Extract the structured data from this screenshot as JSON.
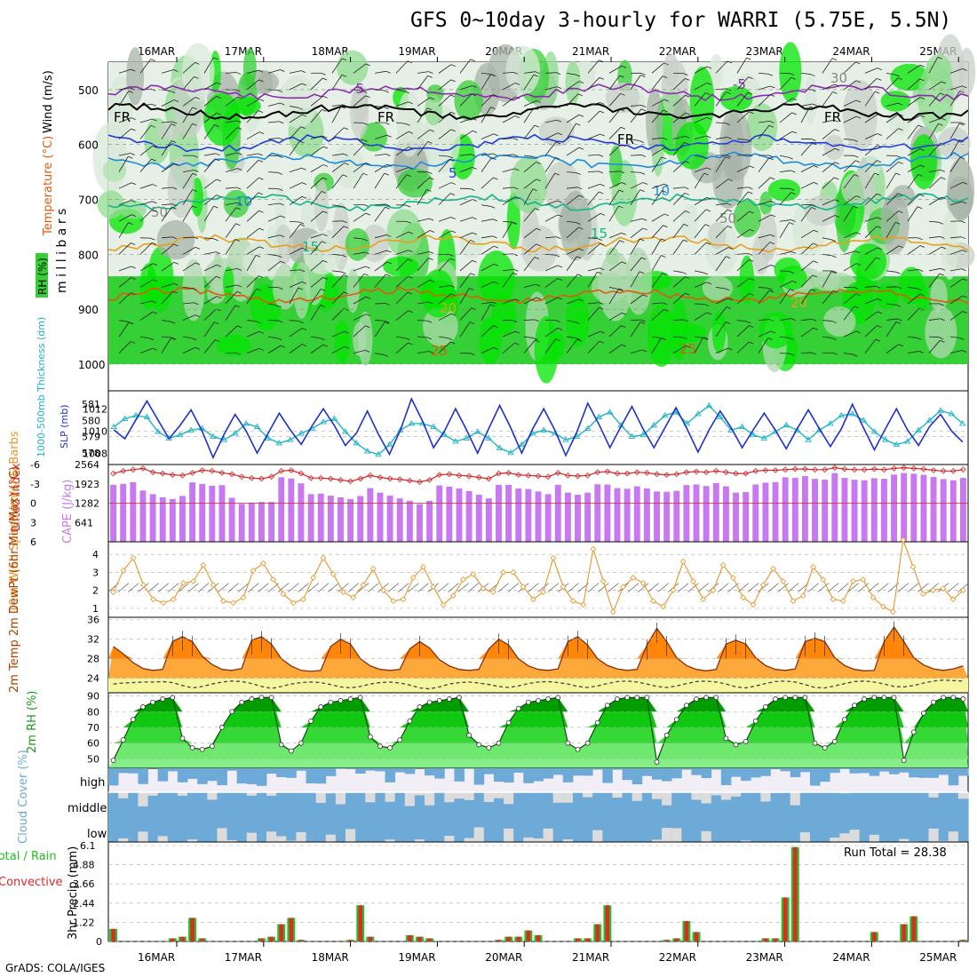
{
  "title": "GFS 0~10day 3-hourly for WARRI (5.75E, 5.5N)",
  "credit": "GrADS: COLA/IGES",
  "dates": [
    "16MAR",
    "17MAR",
    "18MAR",
    "19MAR",
    "20MAR",
    "21MAR",
    "22MAR",
    "23MAR",
    "24MAR",
    "25MAR"
  ],
  "colors": {
    "rh_green": "#35d035",
    "rh_bright": "#00e600",
    "rh_gray": "#c8d0c8",
    "temp_purple": "#8a2bb0",
    "temp_blue": "#1e3cdc",
    "temp_lightblue": "#1e8cdc",
    "temp_teal": "#12b48c",
    "temp_orange": "#e6a01e",
    "temp_darkorange": "#e05a0a",
    "thickness": "#22b4c4",
    "slp": "#1e32c8",
    "lifted": "#d22828",
    "cape": "#c878f0",
    "wind": "#e69628",
    "cloud": "#6eaad8",
    "precip_total": "#22c022",
    "precip_conv": "#e02828"
  },
  "chart_data": [
    {
      "type": "heatmap",
      "name": "upper-air",
      "ylabel": "m i l l i b a r s",
      "legend": [
        "RH (%)",
        "Temperature (°C)",
        "Wind (m/s)"
      ],
      "yticks": [
        500,
        600,
        700,
        800,
        900,
        1000
      ],
      "ylim": [
        1000,
        450
      ],
      "contour_labels": [
        "-5",
        "-5",
        "FR",
        "FR",
        "FR",
        "FR",
        "5",
        "10",
        "10",
        "15",
        "15",
        "20",
        "20",
        "25",
        "25",
        "30",
        "50",
        "50"
      ]
    },
    {
      "type": "line",
      "name": "thickness-slp",
      "ylabel_left": "1000-500mb Thickness (dm)",
      "ylabel_right": "SLP (mb)",
      "yticks_left": [
        "581",
        "580",
        "579",
        "578"
      ],
      "yticks_right": [
        "1012",
        "1010",
        "1008"
      ],
      "series": [
        {
          "name": "1000-500mb Thickness (dm)",
          "values": [
            579.6,
            580.1,
            580.3,
            580.2,
            579.3,
            578.9,
            579.1,
            579.4,
            579.5,
            579.0,
            578.8,
            579.2,
            579.8,
            579.6,
            578.9,
            578.6,
            578.8,
            579.2,
            579.5,
            579.9,
            580.1,
            579.3,
            578.6,
            578.1,
            577.9,
            578.5,
            579.4,
            579.8,
            579.8,
            579.6,
            579.1,
            578.7,
            578.9,
            579.3,
            578.9,
            578.3,
            578.0,
            578.5,
            579.2,
            579.4,
            579.2,
            578.8,
            579.0,
            579.5,
            580.2,
            580.5,
            579.7,
            579.0,
            579.1,
            579.7,
            580.3,
            580.5,
            579.8,
            580.4,
            580.9,
            580.2,
            579.4,
            579.6,
            579.1,
            578.9,
            579.3,
            579.7,
            579.4,
            578.8,
            579.4,
            579.8,
            580.3,
            580.4,
            580.0,
            579.3,
            578.8,
            578.5,
            578.7,
            579.4,
            580.0,
            580.6,
            580.4,
            579.8
          ]
        },
        {
          "name": "SLP (mb)",
          "values": [
            1010.1,
            1009.3,
            1011.0,
            1012.7,
            1011.0,
            1009.3,
            1010.5,
            1011.9,
            1010.0,
            1007.6,
            1009.7,
            1011.5,
            1010.0,
            1008.0,
            1009.8,
            1011.6,
            1010.1,
            1008.8,
            1010.5,
            1012.0,
            1010.5,
            1008.7,
            1009.8,
            1011.8,
            1009.7,
            1007.9,
            1010.1,
            1012.9,
            1010.9,
            1008.5,
            1010.0,
            1012.0,
            1010.1,
            1008.0,
            1010.2,
            1012.3,
            1010.3,
            1008.0,
            1010.2,
            1012.0,
            1010.1,
            1007.8,
            1009.9,
            1012.5,
            1010.6,
            1008.5,
            1010.4,
            1012.2,
            1010.2,
            1008.5,
            1010.3,
            1012.1,
            1010.2,
            1008.1,
            1010.1,
            1011.8,
            1010.3,
            1008.5,
            1010.1,
            1011.6,
            1010.1,
            1008.4,
            1010.2,
            1011.9,
            1010.2,
            1008.6,
            1010.2,
            1012.4,
            1010.3,
            1008.3,
            1010.2,
            1012.0,
            1010.1,
            1008.7,
            1010.4,
            1011.5,
            1010.0,
            1009.0
          ]
        }
      ]
    },
    {
      "type": "bar",
      "name": "lifted-index-cape",
      "ylabel_left": "Lifted Index",
      "ylabel_right": "CAPE (J/kg)",
      "yticks_left": [
        "-6",
        "-3",
        "0",
        "3",
        "6"
      ],
      "yticks_right": [
        "2564",
        "1923",
        "1282",
        "641"
      ],
      "series": [
        {
          "name": "CAPE (J/kg)",
          "values": [
            1890,
            1920,
            1980,
            1700,
            1580,
            1480,
            1420,
            1520,
            1970,
            1920,
            1860,
            1880,
            1460,
            1260,
            1300,
            1320,
            1320,
            2140,
            2100,
            1940,
            1580,
            1600,
            1530,
            1480,
            1420,
            1520,
            1780,
            1630,
            1530,
            1440,
            1360,
            1250,
            1360,
            1870,
            1830,
            1770,
            1680,
            1560,
            1440,
            1890,
            1890,
            1770,
            1750,
            1670,
            1580,
            1890,
            1630,
            1560,
            1630,
            1910,
            1900,
            1780,
            1760,
            1840,
            1770,
            1670,
            1660,
            1690,
            1880,
            1900,
            1850,
            1950,
            1840,
            1630,
            1650,
            1900,
            1960,
            1980,
            2140,
            2120,
            2180,
            2090,
            2060,
            2280,
            2120,
            2060,
            2040,
            2110,
            2090,
            2230,
            2280,
            2260,
            2220,
            2150,
            2080,
            2040,
            2120
          ]
        },
        {
          "name": "Lifted Index",
          "values": [
            -4.6,
            -5.0,
            -5.2,
            -5.4,
            -4.8,
            -4.6,
            -4.4,
            -4.3,
            -4.7,
            -5.1,
            -5.0,
            -4.7,
            -4.5,
            -4.1,
            -3.9,
            -3.8,
            -4.1,
            -5.0,
            -5.1,
            -4.6,
            -3.9,
            -3.9,
            -3.8,
            -3.6,
            -3.4,
            -3.8,
            -4.3,
            -4.0,
            -3.8,
            -3.7,
            -3.5,
            -3.3,
            -3.6,
            -4.4,
            -4.5,
            -4.3,
            -4.2,
            -4.0,
            -3.8,
            -4.6,
            -4.7,
            -4.4,
            -4.3,
            -4.2,
            -4.1,
            -4.7,
            -4.3,
            -4.2,
            -4.3,
            -4.8,
            -4.9,
            -4.6,
            -4.6,
            -4.8,
            -4.7,
            -4.5,
            -4.4,
            -4.5,
            -4.8,
            -4.9,
            -4.8,
            -5.0,
            -4.8,
            -4.6,
            -4.6,
            -5.0,
            -5.1,
            -5.1,
            -5.2,
            -5.3,
            -5.3,
            -5.2,
            -5.2,
            -5.5,
            -5.3,
            -5.2,
            -5.2,
            -5.3,
            -5.2,
            -5.4,
            -5.5,
            -5.4,
            -5.3,
            -5.1,
            -5.0,
            -5.0,
            -5.2
          ]
        }
      ]
    },
    {
      "type": "line",
      "name": "10m-wind",
      "ylabel": "10m Wind Speed (m/s) & Barbs",
      "yticks": [
        "1",
        "2",
        "3",
        "4"
      ],
      "ylim": [
        0.5,
        4.7
      ],
      "series": [
        {
          "name": "10m Wind Speed (m/s)",
          "values": [
            1.9,
            3.1,
            3.8,
            2.3,
            1.5,
            1.3,
            1.5,
            2.4,
            2.5,
            3.4,
            2.3,
            1.4,
            1.3,
            1.6,
            3.1,
            3.5,
            2.6,
            1.8,
            1.3,
            1.5,
            2.7,
            3.8,
            2.9,
            1.9,
            1.6,
            2.3,
            3.2,
            2.0,
            1.4,
            1.5,
            2.7,
            3.3,
            2.2,
            1.2,
            1.7,
            2.6,
            2.9,
            2.1,
            1.9,
            3.0,
            3.0,
            2.2,
            1.5,
            1.9,
            3.8,
            2.2,
            1.4,
            1.2,
            4.3,
            2.5,
            0.8,
            2.2,
            2.7,
            2.4,
            1.4,
            1.1,
            2.0,
            3.6,
            2.5,
            1.5,
            2.0,
            3.4,
            2.7,
            1.6,
            1.2,
            2.3,
            3.2,
            2.5,
            1.4,
            1.7,
            3.3,
            2.6,
            1.5,
            1.4,
            2.5,
            2.6,
            1.6,
            1.1,
            0.8,
            4.8,
            3.3,
            1.8,
            2.0,
            2.1,
            1.5,
            2.0
          ]
        }
      ]
    },
    {
      "type": "area",
      "name": "2m-temp-dewpoint",
      "ylabel": "2m Temp 2m DewPt (6hr Min/Max) (°C)",
      "yticks": [
        "24",
        "28",
        "32",
        "36"
      ],
      "ylim": [
        21,
        36.5
      ],
      "series": [
        {
          "name": "2m Temp (°C)",
          "values": [
            30.5,
            29.0,
            27.2,
            26.0,
            25.6,
            25.8,
            31.5,
            32.5,
            31.5,
            28.5,
            26.8,
            25.8,
            25.6,
            26.0,
            31.8,
            32.5,
            31.0,
            28.0,
            26.5,
            25.6,
            25.4,
            25.6,
            30.5,
            32.0,
            31.0,
            28.0,
            26.5,
            25.8,
            25.6,
            25.8,
            30.0,
            31.5,
            30.2,
            27.8,
            26.5,
            25.8,
            25.6,
            25.8,
            30.0,
            32.0,
            30.8,
            28.0,
            26.5,
            25.8,
            25.6,
            25.9,
            31.5,
            32.5,
            30.8,
            28.0,
            26.6,
            25.9,
            25.6,
            25.8,
            30.8,
            34.2,
            31.5,
            28.2,
            26.6,
            25.8,
            25.5,
            25.8,
            31.0,
            31.8,
            31.0,
            28.2,
            26.6,
            25.8,
            25.6,
            25.9,
            31.5,
            32.2,
            31.5,
            28.2,
            26.6,
            25.8,
            25.5,
            25.6,
            31.5,
            34.5,
            31.5,
            28.2,
            26.7,
            25.9,
            25.6,
            25.9,
            26.5
          ]
        },
        {
          "name": "2m DewPt (°C)",
          "values": [
            22.8,
            23.0,
            23.1,
            23.2,
            23.2,
            23.3,
            23.1,
            22.5,
            22.0,
            22.3,
            22.8,
            23.2,
            23.4,
            23.3,
            22.9,
            22.3,
            21.9,
            22.3,
            22.8,
            23.1,
            23.2,
            23.1,
            22.7,
            22.2,
            22.0,
            22.3,
            22.8,
            23.1,
            23.2,
            23.0,
            22.6,
            22.0,
            21.8,
            22.2,
            22.8,
            23.1,
            23.2,
            23.0,
            22.7,
            22.3,
            22.1,
            22.4,
            22.9,
            23.2,
            23.3,
            23.1,
            22.8,
            22.3,
            22.1,
            22.4,
            22.9,
            23.3,
            23.4,
            23.2,
            22.8,
            22.3,
            22.1,
            22.4,
            22.9,
            23.3,
            23.4,
            23.2,
            22.8,
            22.2,
            22.0,
            22.4,
            22.9,
            23.3,
            23.4,
            23.2,
            22.7,
            22.1,
            22.0,
            22.4,
            22.9,
            23.3,
            23.4,
            23.2,
            22.8,
            22.3,
            22.2,
            22.5,
            23.0,
            23.4,
            23.6,
            23.5,
            23.4
          ]
        }
      ]
    },
    {
      "type": "area",
      "name": "2m-rh",
      "ylabel": "2m RH (%)",
      "yticks": [
        "50",
        "60",
        "70",
        "80",
        "90"
      ],
      "ylim": [
        44,
        92
      ],
      "series": [
        {
          "name": "2m RH (%)",
          "values": [
            49,
            62,
            75,
            83,
            86,
            88,
            89,
            63,
            57,
            56,
            58,
            70,
            80,
            86,
            88,
            89,
            89,
            59,
            55,
            60,
            74,
            83,
            86,
            87,
            88,
            89,
            64,
            58,
            57,
            62,
            74,
            83,
            86,
            87,
            88,
            89,
            65,
            59,
            57,
            60,
            73,
            82,
            86,
            87,
            88,
            89,
            60,
            56,
            60,
            73,
            84,
            88,
            89,
            89,
            89,
            48,
            65,
            75,
            84,
            88,
            89,
            89,
            63,
            59,
            61,
            74,
            83,
            88,
            89,
            89,
            89,
            60,
            57,
            61,
            75,
            84,
            88,
            89,
            89,
            89,
            49,
            67,
            79,
            86,
            89,
            89,
            88
          ]
        }
      ]
    },
    {
      "type": "area",
      "name": "cloud-cover",
      "ylabel": "Cloud Cover (%)",
      "ytick_labels": [
        "high",
        "middle",
        "low"
      ]
    },
    {
      "type": "bar",
      "name": "precip",
      "ylabel": "3hr Precip (mm)",
      "legend": [
        "Total / Rain",
        "Convective"
      ],
      "annotation": "Run Total = 28.38",
      "yticks": [
        "0",
        "1.22",
        "2.44",
        "3.66",
        "4.88",
        "6.1"
      ],
      "ylim": [
        0,
        6.1
      ],
      "series": [
        {
          "name": "Total / Rain",
          "values": [
            0.8,
            0,
            0,
            0,
            0,
            0,
            0.2,
            0.3,
            1.5,
            0.2,
            0,
            0,
            0,
            0,
            0,
            0.2,
            0.3,
            1.1,
            1.5,
            0.1,
            0,
            0,
            0,
            0,
            0.1,
            2.3,
            0.3,
            0,
            0,
            0,
            0.4,
            0.3,
            0.2,
            0,
            0,
            0,
            0,
            0,
            0,
            0.1,
            0.3,
            0.3,
            0.7,
            0.4,
            0,
            0,
            0,
            0.2,
            0.2,
            1.1,
            2.3,
            0,
            0,
            0,
            0,
            0,
            0.1,
            0.2,
            1.3,
            0.6,
            0,
            0,
            0,
            0,
            0,
            0,
            0.2,
            0.2,
            2.8,
            6.0,
            0,
            0,
            0,
            0,
            0,
            0,
            0,
            0.6,
            0,
            0,
            1.1,
            1.6,
            0,
            0,
            0,
            0,
            0.1
          ]
        }
      ]
    }
  ]
}
